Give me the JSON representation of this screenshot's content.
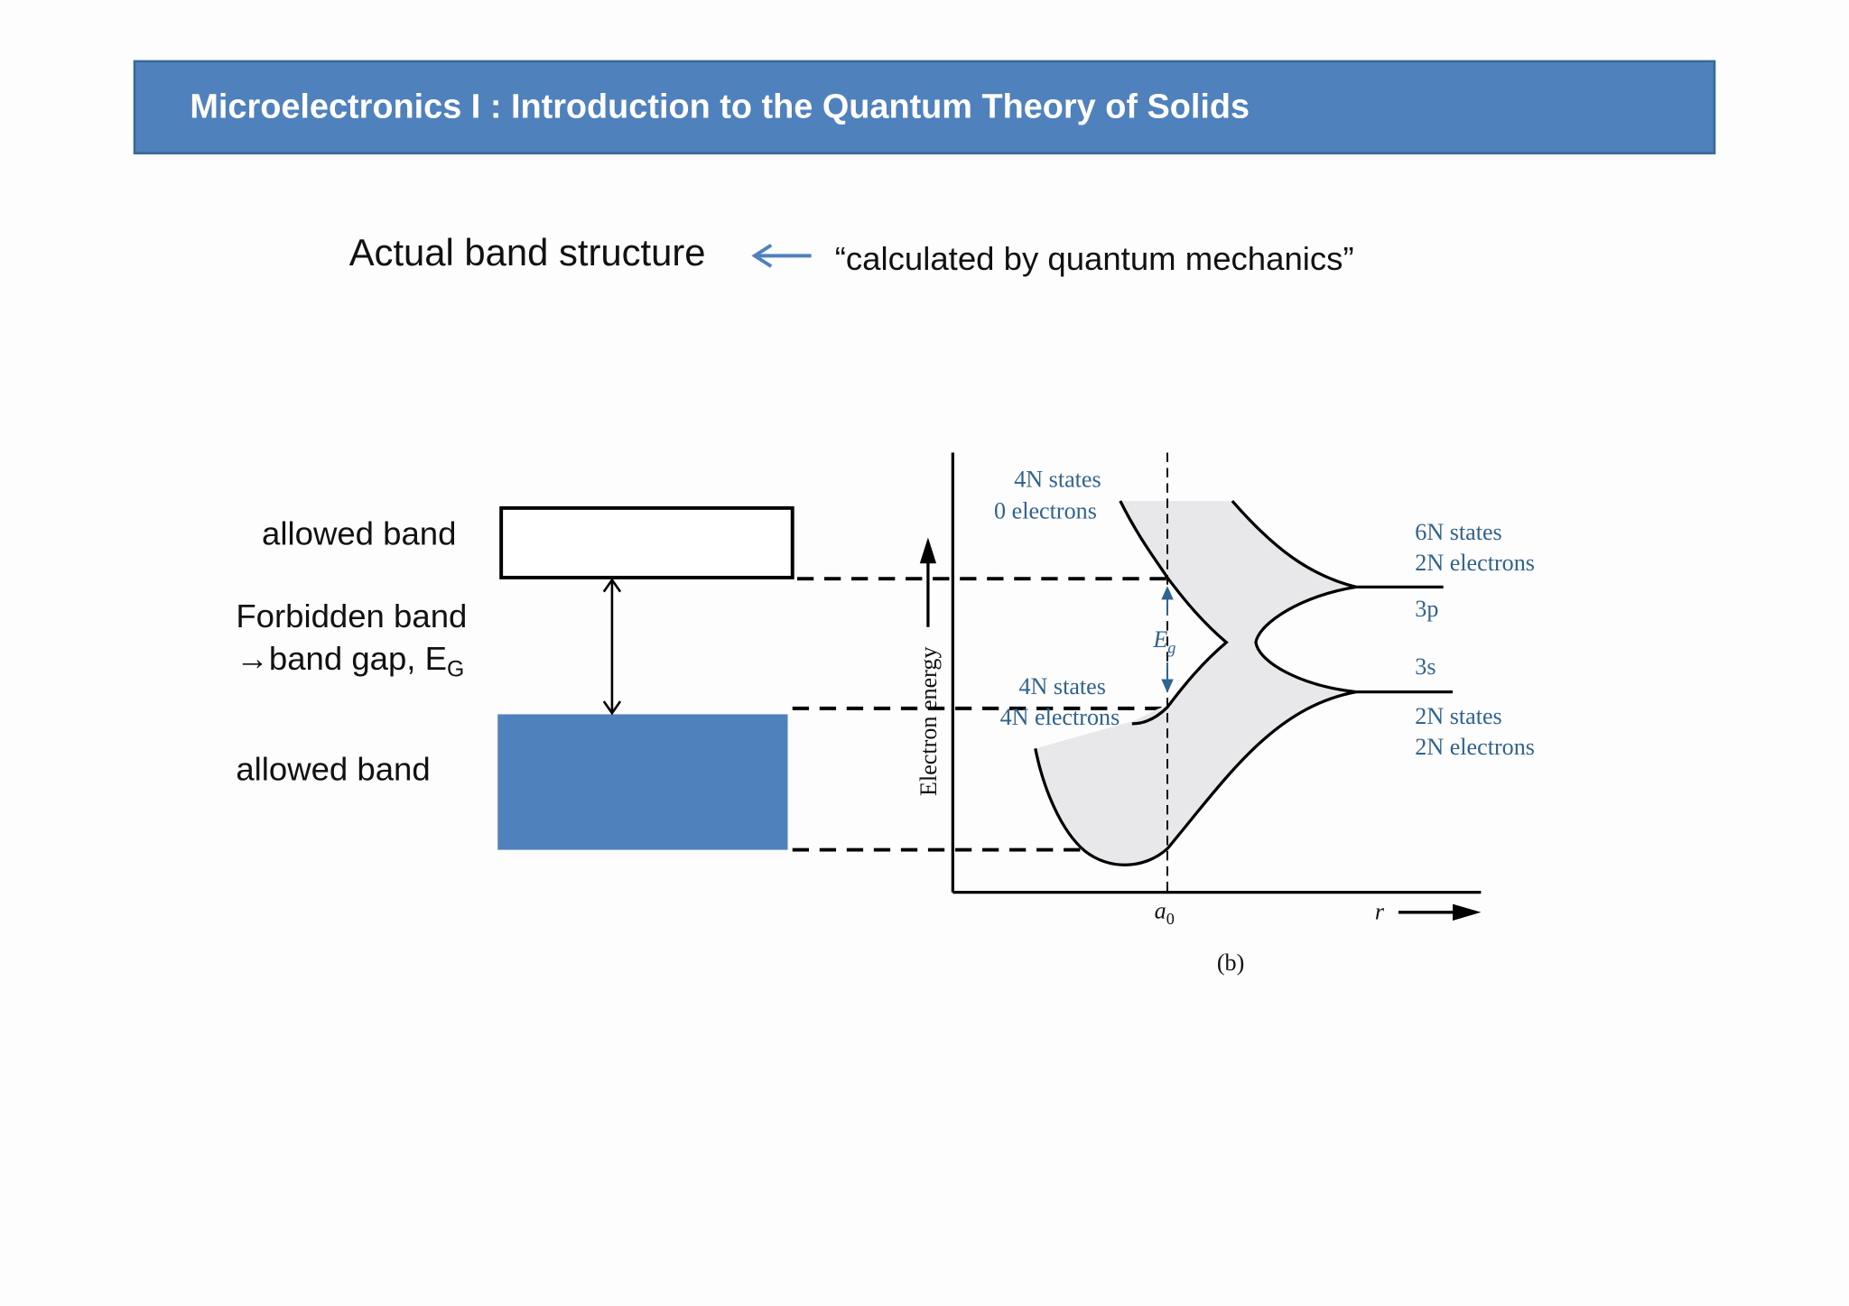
{
  "header": {
    "title": "Microelectronics I : Introduction to the Quantum Theory of Solids"
  },
  "heading": {
    "text": "Actual band structure",
    "note": "“calculated by quantum mechanics”"
  },
  "simple_diagram": {
    "upper_band": "allowed band",
    "forbidden": "Forbidden band",
    "band_gap": {
      "text": "→band gap, E",
      "subscript": "G"
    },
    "lower_band": "allowed band"
  },
  "figure": {
    "upper_left": [
      "4N states",
      "0 electrons"
    ],
    "upper_right": [
      "6N states",
      "2N electrons"
    ],
    "level_3p": "3p",
    "level_3s": "3s",
    "lower_left": [
      "4N states",
      "4N electrons"
    ],
    "lower_right": [
      "2N states",
      "2N electrons"
    ],
    "energy_gap": {
      "symbol": "E",
      "subscript": "g"
    },
    "y_axis": "Electron energy",
    "lattice_constant": {
      "symbol": "a",
      "subscript": "0"
    },
    "x_axis": "r",
    "caption": "(b)"
  }
}
